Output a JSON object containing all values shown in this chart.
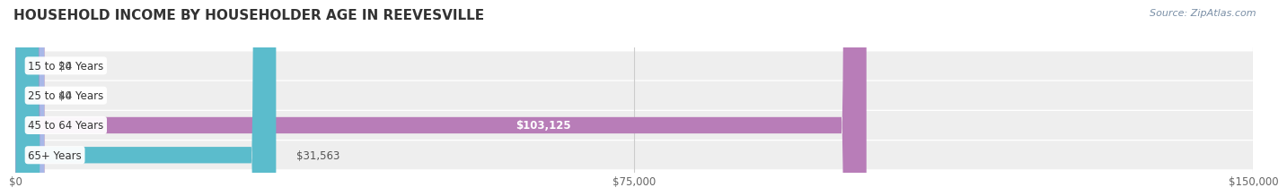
{
  "title": "HOUSEHOLD INCOME BY HOUSEHOLDER AGE IN REEVESVILLE",
  "source": "Source: ZipAtlas.com",
  "categories": [
    "15 to 24 Years",
    "25 to 44 Years",
    "45 to 64 Years",
    "65+ Years"
  ],
  "values": [
    0,
    0,
    103125,
    31563
  ],
  "value_labels": [
    "$0",
    "$0",
    "$103,125",
    "$31,563"
  ],
  "bar_colors": [
    "#f4a0a8",
    "#a8b8e8",
    "#b87db8",
    "#5bbccc"
  ],
  "row_bg_color": "#eeeeee",
  "xlim": [
    0,
    150000
  ],
  "xtick_values": [
    0,
    75000,
    150000
  ],
  "xtick_labels": [
    "$0",
    "$75,000",
    "$150,000"
  ],
  "bg_color": "#ffffff",
  "title_fontsize": 11,
  "label_fontsize": 8.5,
  "tick_fontsize": 8.5,
  "source_fontsize": 8,
  "bar_height": 0.55,
  "label_color_inside": "#ffffff",
  "label_color_outside": "#555555"
}
